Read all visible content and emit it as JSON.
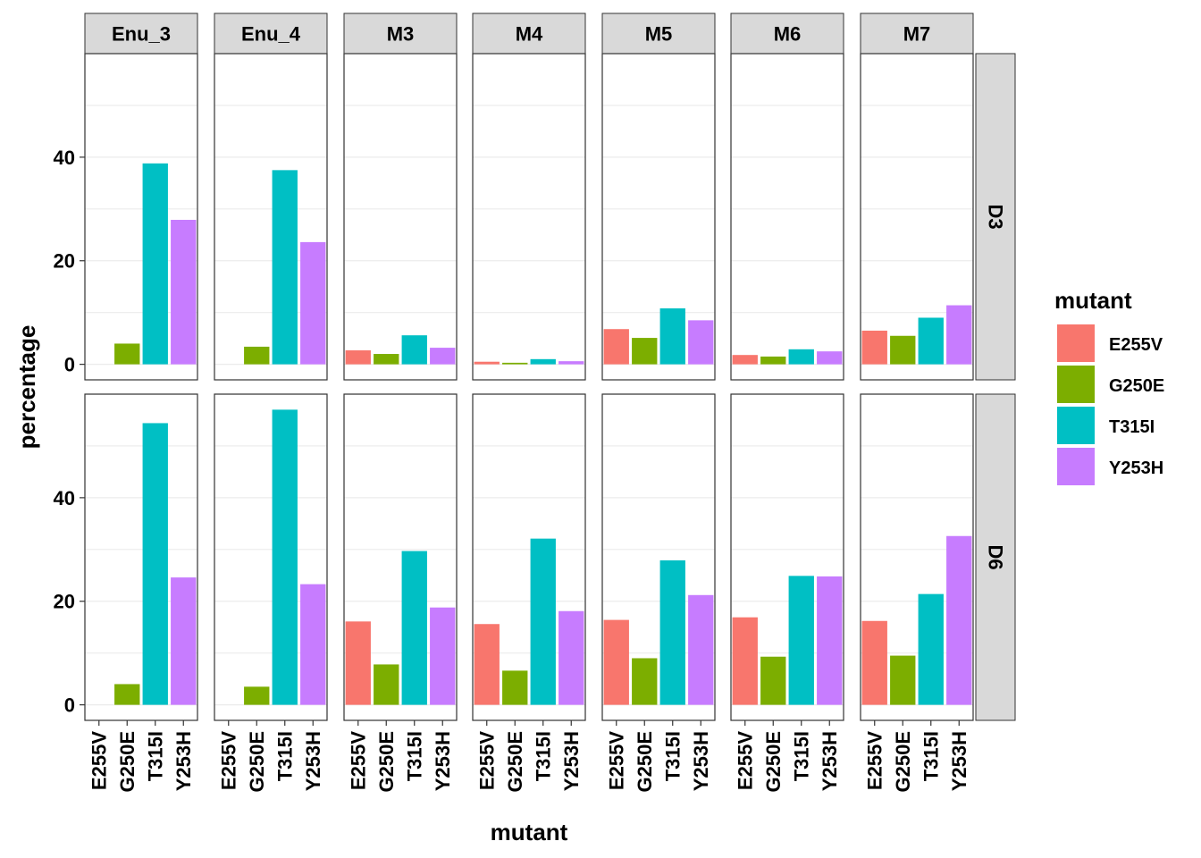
{
  "chart_data": {
    "type": "bar",
    "layout": "facet_grid",
    "xlabel": "mutant",
    "ylabel": "percentage",
    "ylim": [
      -3,
      60
    ],
    "yticks": [
      0,
      20,
      40
    ],
    "grid": true,
    "col_facets": [
      "Enu_3",
      "Enu_4",
      "M3",
      "M4",
      "M5",
      "M6",
      "M7"
    ],
    "row_facets": [
      "D3",
      "D6"
    ],
    "categories": [
      "E255V",
      "G250E",
      "T315I",
      "Y253H"
    ],
    "colors": {
      "E255V": "#F8766D",
      "G250E": "#7CAE00",
      "T315I": "#00BFC4",
      "Y253H": "#C77CFF"
    },
    "legend": {
      "title": "mutant",
      "position": "right",
      "entries": [
        "E255V",
        "G250E",
        "T315I",
        "Y253H"
      ]
    },
    "panels": [
      {
        "row": "D3",
        "col": "Enu_3",
        "values": [
          null,
          4.0,
          38.8,
          27.9
        ]
      },
      {
        "row": "D3",
        "col": "Enu_4",
        "values": [
          null,
          3.4,
          37.5,
          23.6
        ]
      },
      {
        "row": "D3",
        "col": "M3",
        "values": [
          2.7,
          2.0,
          5.6,
          3.2
        ]
      },
      {
        "row": "D3",
        "col": "M4",
        "values": [
          0.5,
          0.3,
          1.0,
          0.6
        ]
      },
      {
        "row": "D3",
        "col": "M5",
        "values": [
          6.8,
          5.1,
          10.8,
          8.5
        ]
      },
      {
        "row": "D3",
        "col": "M6",
        "values": [
          1.8,
          1.5,
          2.9,
          2.5
        ]
      },
      {
        "row": "D3",
        "col": "M7",
        "values": [
          6.5,
          5.5,
          9.0,
          11.4
        ]
      },
      {
        "row": "D6",
        "col": "Enu_3",
        "values": [
          null,
          4.0,
          54.4,
          24.6
        ]
      },
      {
        "row": "D6",
        "col": "Enu_4",
        "values": [
          null,
          3.5,
          57.0,
          23.3
        ]
      },
      {
        "row": "D6",
        "col": "M3",
        "values": [
          16.1,
          7.8,
          29.7,
          18.8
        ]
      },
      {
        "row": "D6",
        "col": "M4",
        "values": [
          15.6,
          6.6,
          32.1,
          18.1
        ]
      },
      {
        "row": "D6",
        "col": "M5",
        "values": [
          16.4,
          9.0,
          27.9,
          21.2
        ]
      },
      {
        "row": "D6",
        "col": "M6",
        "values": [
          16.9,
          9.3,
          24.9,
          24.8
        ]
      },
      {
        "row": "D6",
        "col": "M7",
        "values": [
          16.2,
          9.5,
          21.4,
          32.6
        ]
      }
    ]
  }
}
